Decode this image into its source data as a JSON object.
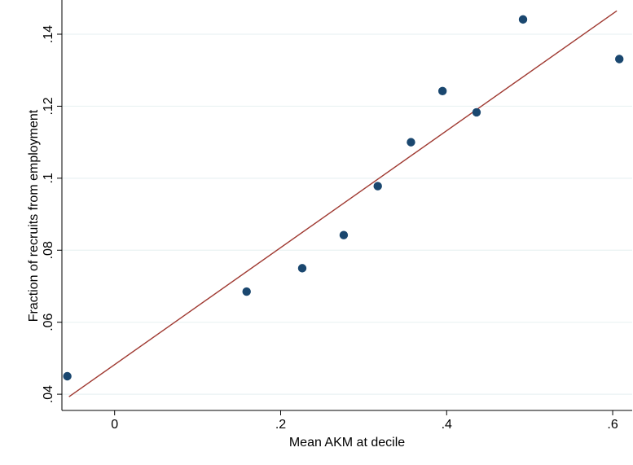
{
  "chart_data": {
    "type": "scatter",
    "title": "",
    "xlabel": "Mean AKM at decile",
    "ylabel": "Fraction of recruits from employment",
    "xlim": [
      -0.0635,
      0.6235
    ],
    "ylim": [
      0.0355,
      0.1495
    ],
    "x_ticks": [
      0,
      0.2,
      0.4,
      0.6
    ],
    "x_tick_labels": [
      "0",
      ".2",
      ".4",
      ".6"
    ],
    "y_ticks": [
      0.04,
      0.06,
      0.08,
      0.1,
      0.12,
      0.14
    ],
    "y_tick_labels": [
      ".04",
      ".06",
      ".08",
      ".1",
      ".12",
      ".14"
    ],
    "grid": "horizontal",
    "series": [
      {
        "type": "scatter",
        "color": "#1a476f",
        "x": [
          -0.057,
          0.159,
          0.226,
          0.276,
          0.317,
          0.357,
          0.395,
          0.436,
          0.492,
          0.608
        ],
        "y": [
          0.045,
          0.0685,
          0.075,
          0.0842,
          0.0978,
          0.11,
          0.1242,
          0.1183,
          0.1441,
          0.1331
        ]
      },
      {
        "type": "line",
        "color": "#a03a32",
        "x": [
          -0.055,
          0.605
        ],
        "y": [
          0.0393,
          0.1465
        ]
      }
    ]
  }
}
